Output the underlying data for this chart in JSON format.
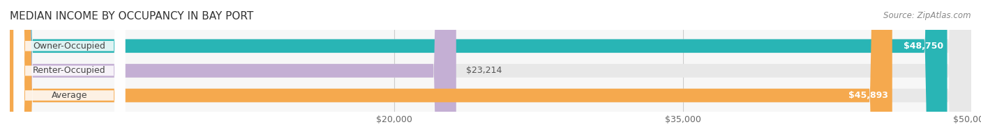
{
  "title": "MEDIAN INCOME BY OCCUPANCY IN BAY PORT",
  "source": "Source: ZipAtlas.com",
  "categories": [
    "Owner-Occupied",
    "Renter-Occupied",
    "Average"
  ],
  "values": [
    48750,
    23214,
    45893
  ],
  "labels": [
    "$48,750",
    "$23,214",
    "$45,893"
  ],
  "bar_colors": [
    "#29b5b5",
    "#c4afd4",
    "#f5a94e"
  ],
  "bar_bg_color": "#f0f0f0",
  "xlim": [
    0,
    50000
  ],
  "xticks": [
    20000,
    35000,
    50000
  ],
  "xtick_labels": [
    "$20,000",
    "$35,000",
    "$50,000"
  ],
  "title_fontsize": 11,
  "label_fontsize": 9,
  "tick_fontsize": 9,
  "bar_height": 0.55,
  "background_color": "#ffffff",
  "plot_bg_color": "#f7f7f7"
}
